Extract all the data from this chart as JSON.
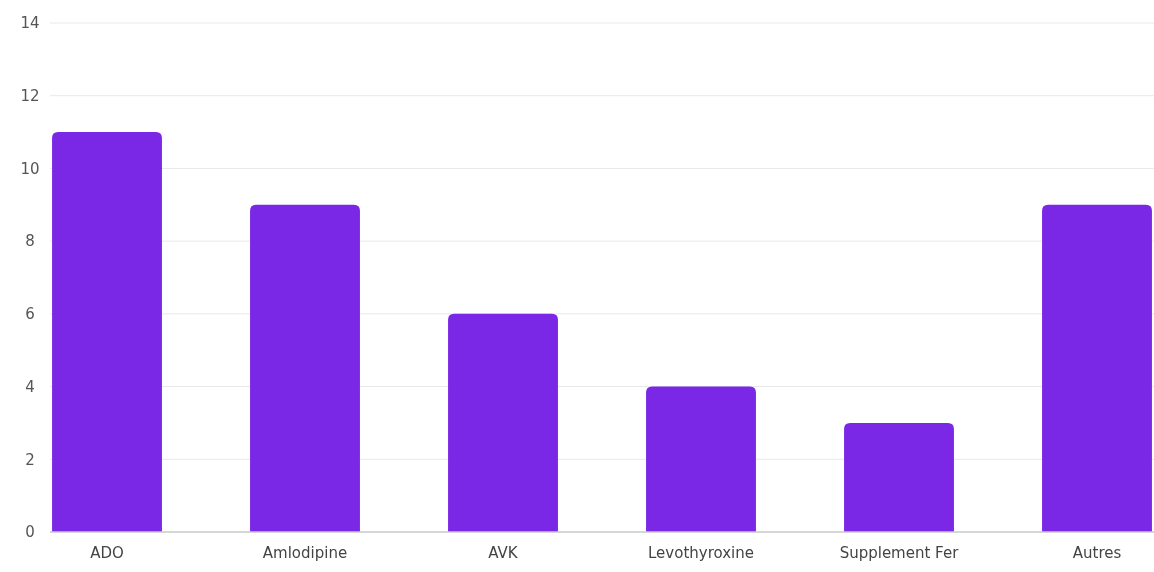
{
  "chart_data": {
    "type": "bar",
    "categories": [
      "ADO",
      "Amlodipine",
      "AVK",
      "Levothyroxine",
      "Supplement Fer",
      "Autres"
    ],
    "values": [
      11,
      9,
      6,
      4,
      3,
      9
    ],
    "color": "#7a28e6",
    "ylim": [
      0,
      14
    ],
    "yticks": [
      0,
      2,
      4,
      6,
      8,
      10,
      12,
      14
    ],
    "grid": "y"
  }
}
